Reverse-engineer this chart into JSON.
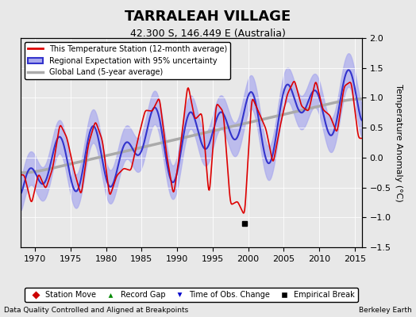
{
  "title": "TARRALEAH VILLAGE",
  "subtitle": "42.300 S, 146.449 E (Australia)",
  "ylabel": "Temperature Anomaly (°C)",
  "footer_left": "Data Quality Controlled and Aligned at Breakpoints",
  "footer_right": "Berkeley Earth",
  "xlim": [
    1968,
    2016
  ],
  "ylim": [
    -1.5,
    2.0
  ],
  "yticks": [
    -1.5,
    -1.0,
    -0.5,
    0.0,
    0.5,
    1.0,
    1.5,
    2.0
  ],
  "xticks": [
    1970,
    1975,
    1980,
    1985,
    1990,
    1995,
    2000,
    2005,
    2010,
    2015
  ],
  "bg_color": "#e8e8e8",
  "plot_bg_color": "#e8e8e8",
  "red_color": "#dd0000",
  "blue_color": "#3333cc",
  "blue_fill_color": "#aaaaee",
  "gray_color": "#aaaaaa",
  "legend_entries": [
    "This Temperature Station (12-month average)",
    "Regional Expectation with 95% uncertainty",
    "Global Land (5-year average)"
  ],
  "marker_legend": {
    "station_move": {
      "color": "#cc0000",
      "marker": "D",
      "label": "Station Move"
    },
    "record_gap": {
      "color": "#008800",
      "marker": "^",
      "label": "Record Gap"
    },
    "obs_change": {
      "color": "#0000cc",
      "marker": "v",
      "label": "Time of Obs. Change"
    },
    "empirical_break": {
      "color": "#000000",
      "marker": "s",
      "label": "Empirical Break"
    }
  },
  "empirical_break_year": 1999.5,
  "empirical_break_anomaly": -1.1
}
